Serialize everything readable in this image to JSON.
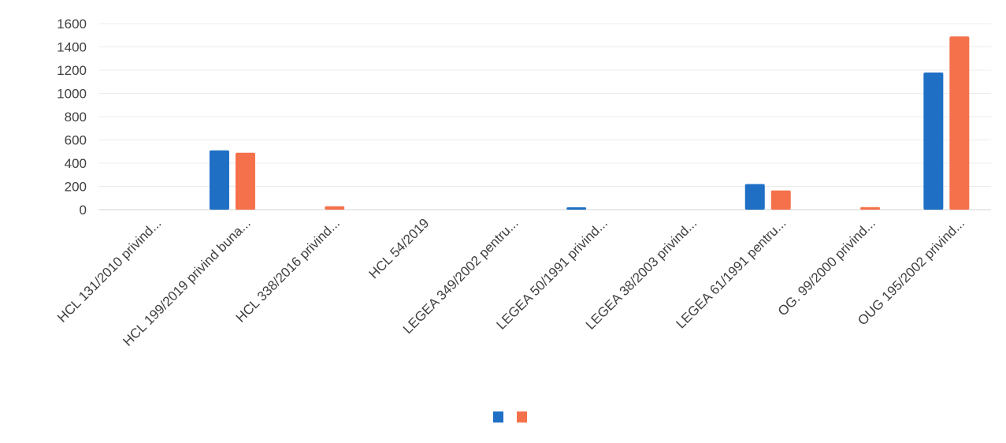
{
  "chart_data": {
    "type": "bar",
    "title": "",
    "xlabel": "",
    "ylabel": "",
    "ylim": [
      0,
      1600
    ],
    "yticks": [
      0,
      200,
      400,
      600,
      800,
      1000,
      1200,
      1400,
      1600
    ],
    "grid": true,
    "legend": "bottom-center",
    "categories": [
      "HCL  131/2010 privind...",
      "HCL 199/2019 privind buna...",
      "HCL 338/2016 privind...",
      "HCL 54/2019",
      "LEGEA 349/2002 pentru...",
      "LEGEA 50/1991  privind...",
      "LEGEA 38/2003 privind...",
      "LEGEA 61/1991 pentru...",
      "OG. 99/2000 privind...",
      "OUG 195/2002 privind..."
    ],
    "series": [
      {
        "color": "#1F6FC5",
        "values": [
          0,
          510,
          0,
          0,
          0,
          20,
          0,
          220,
          0,
          1180
        ]
      },
      {
        "color": "#F4714B",
        "values": [
          0,
          490,
          30,
          0,
          0,
          0,
          0,
          165,
          22,
          1490
        ]
      }
    ]
  }
}
